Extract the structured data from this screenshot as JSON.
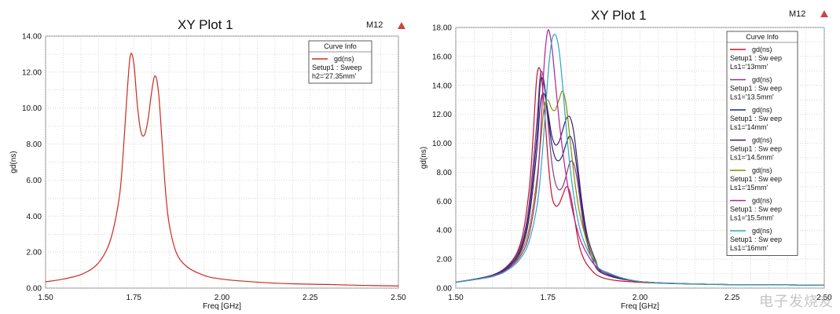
{
  "chart_data": [
    {
      "type": "line",
      "title": "XY Plot 1",
      "badge": "M12",
      "xlabel": "Freq [GHz]",
      "ylabel": "gd(ns)",
      "xlim": [
        1.5,
        2.5
      ],
      "ylim": [
        0,
        14
      ],
      "xticks": [
        "1.50",
        "1.75",
        "2.00",
        "2.25",
        "2.50"
      ],
      "yticks": [
        "0.00",
        "2.00",
        "4.00",
        "6.00",
        "8.00",
        "10.00",
        "12.00",
        "14.00"
      ],
      "grid": true,
      "legend": {
        "title": "Curve Info",
        "placement": "top-right",
        "entries": [
          {
            "name": "gd(ns)",
            "line2": "Setup1 : Sweep",
            "line3": "h2='27.35mm'",
            "color": "#cc2a1f"
          }
        ]
      },
      "series": [
        {
          "name": "gd(ns)",
          "color": "#cc2a1f",
          "x": [
            1.5,
            1.55,
            1.6,
            1.64,
            1.67,
            1.69,
            1.71,
            1.72,
            1.73,
            1.74,
            1.75,
            1.76,
            1.77,
            1.78,
            1.79,
            1.8,
            1.81,
            1.82,
            1.83,
            1.84,
            1.85,
            1.87,
            1.9,
            1.95,
            2.0,
            2.1,
            2.2,
            2.3,
            2.4,
            2.5
          ],
          "y": [
            0.35,
            0.5,
            0.75,
            1.2,
            2.0,
            3.1,
            5.2,
            7.5,
            10.5,
            12.9,
            12.5,
            10.2,
            8.7,
            8.5,
            9.3,
            10.8,
            11.8,
            10.9,
            8.2,
            5.4,
            3.6,
            2.0,
            1.2,
            0.7,
            0.5,
            0.33,
            0.24,
            0.2,
            0.15,
            0.12
          ]
        }
      ]
    },
    {
      "type": "line",
      "title": "XY Plot 1",
      "badge": "M12",
      "xlabel": "Freq [GHz]",
      "ylabel": "gd(ns)",
      "xlim": [
        1.5,
        2.5
      ],
      "ylim": [
        0,
        18
      ],
      "xticks": [
        "1.50",
        "1.75",
        "2.00",
        "2.25",
        "2.50"
      ],
      "yticks": [
        "0.00",
        "2.00",
        "4.00",
        "6.00",
        "8.00",
        "10.00",
        "12.00",
        "14.00",
        "16.00",
        "18.00"
      ],
      "grid": true,
      "legend": {
        "title": "Curve Info",
        "placement": "top-right",
        "entries": [
          {
            "name": "gd(ns)",
            "line2": "Setup1 : Sw eep",
            "line3": "Ls1='13mm'",
            "color": "#c8102e"
          },
          {
            "name": "gd(ns)",
            "line2": "Setup1 : Sw eep",
            "line3": "Ls1='13.5mm'",
            "color": "#8b3a8b"
          },
          {
            "name": "gd(ns)",
            "line2": "Setup1 : Sw eep",
            "line3": "Ls1='14mm'",
            "color": "#1f2a70"
          },
          {
            "name": "gd(ns)",
            "line2": "Setup1 : Sw eep",
            "line3": "Ls1='14.5mm'",
            "color": "#3d1a6e"
          },
          {
            "name": "gd(ns)",
            "line2": "Setup1 : Sw eep",
            "line3": "Ls1='15mm'",
            "color": "#8a8a00"
          },
          {
            "name": "gd(ns)",
            "line2": "Setup1 : Sw eep",
            "line3": "Ls1='15.5mm'",
            "color": "#b01f9a"
          },
          {
            "name": "gd(ns)",
            "line2": "Setup1 : Sw eep",
            "line3": "Ls1='16mm'",
            "color": "#2aa8b8"
          }
        ]
      },
      "series": [
        {
          "name": "gd(ns) Ls1='13mm'",
          "color": "#c8102e",
          "x": [
            1.5,
            1.6,
            1.65,
            1.68,
            1.7,
            1.71,
            1.72,
            1.73,
            1.74,
            1.75,
            1.76,
            1.77,
            1.78,
            1.79,
            1.8,
            1.81,
            1.82,
            1.83,
            1.84,
            1.86,
            1.9,
            2.0,
            2.2,
            2.4,
            2.5
          ],
          "y": [
            0.4,
            0.9,
            1.8,
            3.5,
            7.0,
            10.5,
            14.6,
            15.0,
            12.5,
            9.0,
            6.5,
            5.7,
            5.8,
            6.4,
            7.0,
            6.6,
            5.2,
            3.6,
            2.5,
            1.5,
            0.7,
            0.4,
            0.25,
            0.22,
            0.2
          ]
        },
        {
          "name": "gd(ns) Ls1='13.5mm'",
          "color": "#8b3a8b",
          "x": [
            1.5,
            1.6,
            1.65,
            1.68,
            1.7,
            1.72,
            1.73,
            1.74,
            1.75,
            1.76,
            1.77,
            1.78,
            1.79,
            1.8,
            1.81,
            1.82,
            1.83,
            1.84,
            1.85,
            1.87,
            1.9,
            2.0,
            2.2,
            2.4,
            2.5
          ],
          "y": [
            0.4,
            0.9,
            1.8,
            3.2,
            6.0,
            11.5,
            14.8,
            14.2,
            11.5,
            8.8,
            7.3,
            6.8,
            7.0,
            7.8,
            8.7,
            8.6,
            7.4,
            5.5,
            3.8,
            2.0,
            1.0,
            0.45,
            0.26,
            0.22,
            0.2
          ]
        },
        {
          "name": "gd(ns) Ls1='14mm'",
          "color": "#1f2a70",
          "x": [
            1.5,
            1.6,
            1.65,
            1.68,
            1.7,
            1.72,
            1.73,
            1.74,
            1.75,
            1.76,
            1.77,
            1.78,
            1.79,
            1.8,
            1.81,
            1.82,
            1.83,
            1.84,
            1.85,
            1.86,
            1.88,
            1.9,
            2.0,
            2.2,
            2.4,
            2.5
          ],
          "y": [
            0.4,
            0.9,
            1.7,
            3.0,
            5.5,
            10.5,
            14.3,
            14.0,
            12.0,
            10.0,
            9.0,
            8.8,
            9.2,
            10.0,
            10.5,
            9.8,
            8.0,
            6.0,
            4.2,
            3.0,
            1.7,
            1.0,
            0.45,
            0.26,
            0.22,
            0.2
          ]
        },
        {
          "name": "gd(ns) Ls1='14.5mm'",
          "color": "#3d1a6e",
          "x": [
            1.5,
            1.6,
            1.65,
            1.68,
            1.7,
            1.72,
            1.73,
            1.74,
            1.75,
            1.76,
            1.77,
            1.78,
            1.79,
            1.8,
            1.81,
            1.82,
            1.83,
            1.84,
            1.85,
            1.86,
            1.88,
            1.9,
            2.0,
            2.2,
            2.4,
            2.5
          ],
          "y": [
            0.4,
            0.85,
            1.6,
            2.8,
            5.0,
            9.5,
            12.8,
            13.4,
            12.2,
            10.6,
            9.9,
            10.1,
            10.9,
            11.7,
            11.8,
            10.8,
            8.7,
            6.4,
            4.6,
            3.3,
            1.9,
            1.1,
            0.45,
            0.26,
            0.22,
            0.2
          ]
        },
        {
          "name": "gd(ns) Ls1='15mm'",
          "color": "#8a8a00",
          "x": [
            1.5,
            1.6,
            1.65,
            1.68,
            1.7,
            1.72,
            1.73,
            1.74,
            1.75,
            1.76,
            1.77,
            1.78,
            1.79,
            1.8,
            1.81,
            1.82,
            1.83,
            1.84,
            1.86,
            1.88,
            1.9,
            2.0,
            2.2,
            2.4,
            2.5
          ],
          "y": [
            0.4,
            0.85,
            1.5,
            2.6,
            4.2,
            7.5,
            10.0,
            12.5,
            13.0,
            12.4,
            12.3,
            13.0,
            13.6,
            12.6,
            10.3,
            8.0,
            6.1,
            4.7,
            2.9,
            1.8,
            1.2,
            0.45,
            0.26,
            0.22,
            0.2
          ]
        },
        {
          "name": "gd(ns) Ls1='15.5mm'",
          "color": "#b01f9a",
          "x": [
            1.5,
            1.6,
            1.65,
            1.68,
            1.7,
            1.72,
            1.73,
            1.74,
            1.75,
            1.76,
            1.77,
            1.78,
            1.79,
            1.8,
            1.81,
            1.82,
            1.83,
            1.84,
            1.86,
            1.88,
            1.9,
            2.0,
            2.2,
            2.4,
            2.5
          ],
          "y": [
            0.4,
            0.85,
            1.5,
            2.4,
            3.8,
            7.0,
            10.5,
            15.5,
            17.8,
            16.8,
            14.3,
            11.7,
            9.5,
            7.7,
            6.2,
            5.0,
            4.0,
            3.2,
            2.2,
            1.5,
            1.1,
            0.45,
            0.26,
            0.22,
            0.2
          ]
        },
        {
          "name": "gd(ns) Ls1='16mm'",
          "color": "#2aa8b8",
          "x": [
            1.5,
            1.6,
            1.65,
            1.68,
            1.7,
            1.72,
            1.73,
            1.74,
            1.75,
            1.76,
            1.77,
            1.78,
            1.79,
            1.8,
            1.81,
            1.82,
            1.83,
            1.84,
            1.86,
            1.88,
            1.9,
            2.0,
            2.2,
            2.4,
            2.5
          ],
          "y": [
            0.4,
            0.8,
            1.4,
            2.2,
            3.3,
            5.6,
            7.8,
            11.0,
            14.6,
            17.0,
            17.5,
            16.5,
            14.0,
            11.0,
            8.4,
            6.4,
            4.9,
            3.8,
            2.5,
            1.7,
            1.2,
            0.45,
            0.26,
            0.22,
            0.2
          ]
        }
      ]
    }
  ],
  "watermark": "电子发烧友"
}
